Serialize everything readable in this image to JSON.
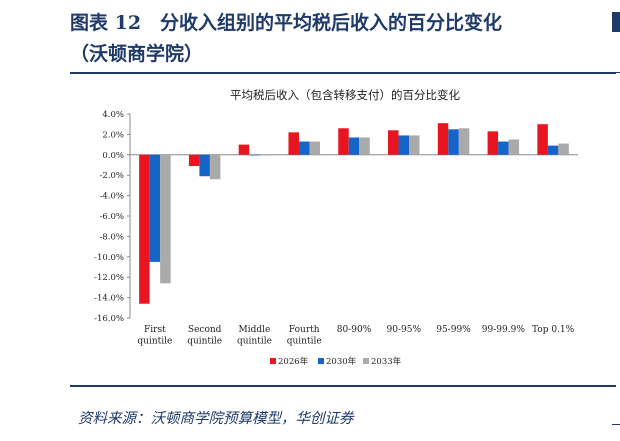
{
  "header": {
    "title_line1": "图表 12　分收入组别的平均税后收入的百分比变化",
    "title_line2": "（沃顿商学院）"
  },
  "source": "资料来源：沃顿商学院预算模型，华创证券",
  "chart_data": {
    "type": "bar",
    "title": "平均税后收入（包含转移支付）的百分比变化",
    "categories": [
      [
        "First",
        "quintile"
      ],
      [
        "Second",
        "quintile"
      ],
      [
        "Middle",
        "quintile"
      ],
      [
        "Fourth",
        "quintile"
      ],
      [
        "80-90%"
      ],
      [
        "90-95%"
      ],
      [
        "95-99%"
      ],
      [
        "99-99.9%"
      ],
      [
        "Top 0.1%"
      ]
    ],
    "series": [
      {
        "name": "2026年",
        "color": "#e8141f",
        "values": [
          -14.6,
          -1.1,
          1.0,
          2.2,
          2.6,
          2.4,
          3.1,
          2.3,
          3.0
        ]
      },
      {
        "name": "2030年",
        "color": "#1565c8",
        "values": [
          -10.5,
          -2.1,
          -0.05,
          1.3,
          1.7,
          1.9,
          2.5,
          1.3,
          0.9
        ]
      },
      {
        "name": "2033年",
        "color": "#aaaaaa",
        "values": [
          -12.6,
          -2.4,
          -0.05,
          1.3,
          1.7,
          1.9,
          2.6,
          1.5,
          1.1
        ]
      }
    ],
    "ylim": [
      -16,
      4
    ],
    "yticks": [
      "4.0%",
      "2.0%",
      "0.0%",
      "-2.0%",
      "-4.0%",
      "-6.0%",
      "-8.0%",
      "-10.0%",
      "-12.0%",
      "-14.0%",
      "-16.0%"
    ],
    "ytick_values": [
      4,
      2,
      0,
      -2,
      -4,
      -6,
      -8,
      -10,
      -12,
      -14,
      -16
    ],
    "legend_position": "bottom",
    "grid": false
  }
}
